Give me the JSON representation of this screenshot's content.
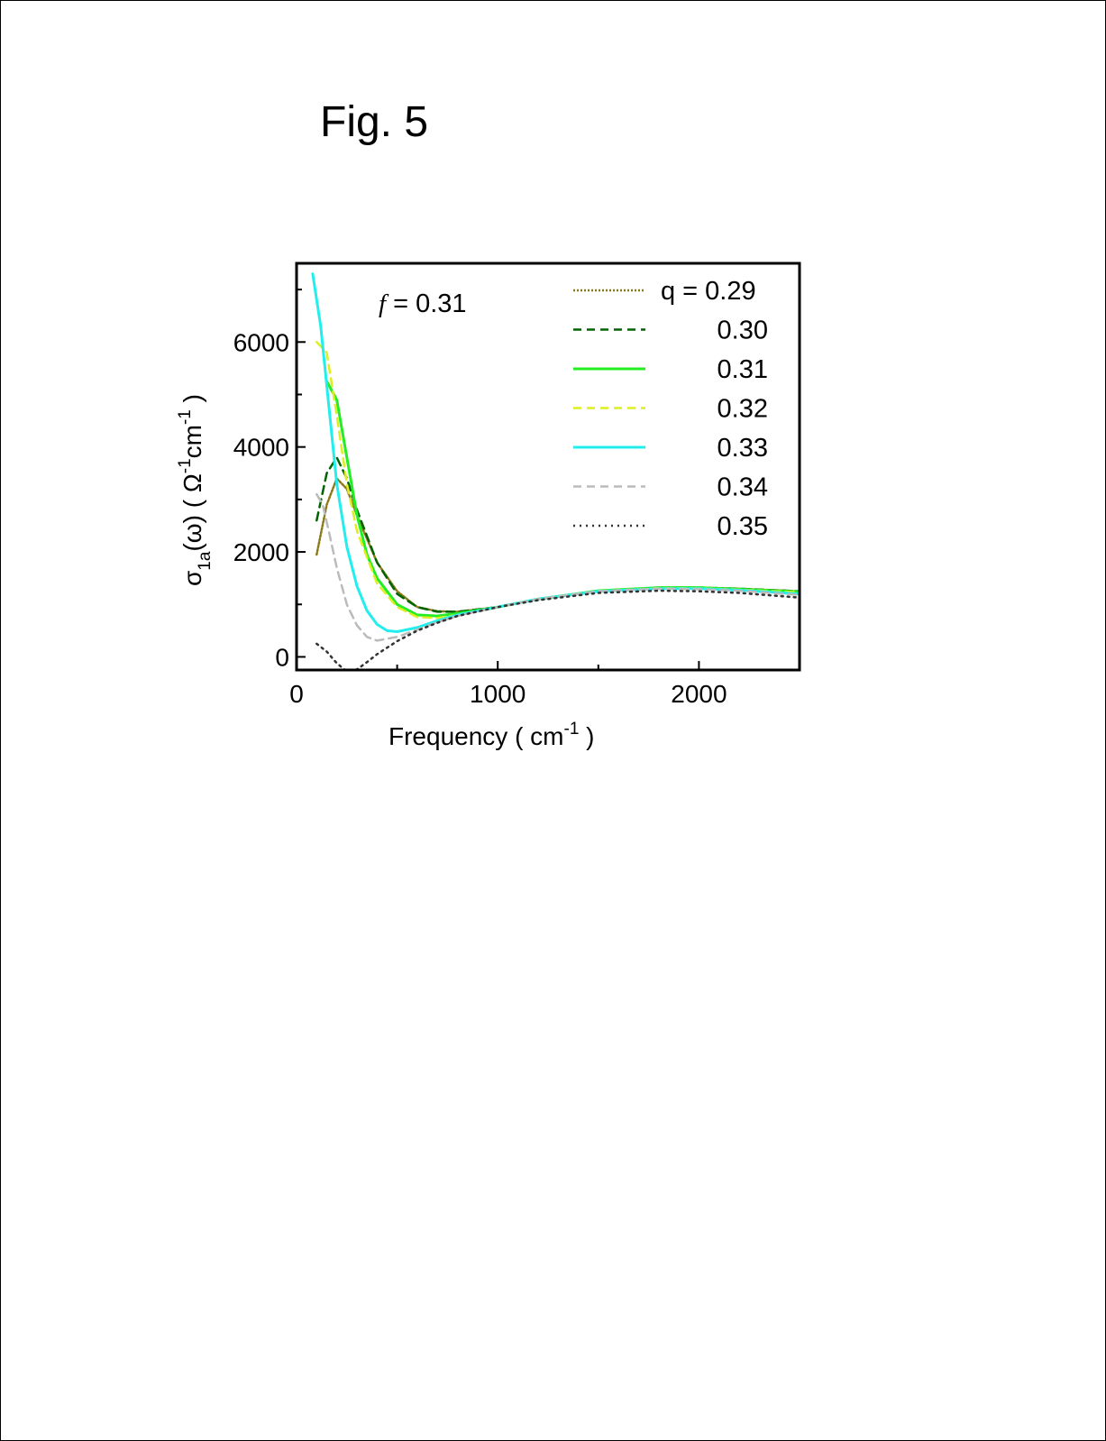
{
  "figure_label": "Fig. 5",
  "chart_data": {
    "type": "line",
    "title": "",
    "annotation": {
      "symbol": "f",
      "text": " = 0.31"
    },
    "xlabel": "Frequency ( cm",
    "xlabel_sup": "-1",
    "xlabel_end": " )",
    "ylabel_parts": [
      "σ",
      "1a",
      "(ω)  ( Ω",
      "-1",
      "cm",
      "-1",
      " )"
    ],
    "xlim": [
      0,
      2500
    ],
    "ylim": [
      -250,
      7500
    ],
    "xticks": [
      0,
      1000,
      2000
    ],
    "xtick_labels": [
      "0",
      "1000",
      "2000"
    ],
    "xminor": [
      500,
      1500
    ],
    "yticks": [
      0,
      2000,
      4000,
      6000
    ],
    "ytick_labels": [
      "0",
      "2000",
      "4000",
      "6000"
    ],
    "yminor": [
      1000,
      3000,
      5000,
      7000
    ],
    "legend_position": "top-right",
    "series": [
      {
        "name": "q = 0.29",
        "color": "#8b7a1a",
        "style": "dotted-marker",
        "x": [
          100,
          150,
          200,
          250,
          300,
          400,
          500,
          600,
          700,
          800,
          1000,
          1200,
          1500,
          1800,
          2000,
          2200,
          2500
        ],
        "y": [
          1950,
          2900,
          3400,
          3200,
          2700,
          1800,
          1250,
          950,
          870,
          860,
          950,
          1100,
          1250,
          1320,
          1320,
          1300,
          1250
        ]
      },
      {
        "name": "0.30",
        "color": "#006400",
        "style": "dashed",
        "x": [
          100,
          150,
          200,
          250,
          300,
          400,
          500,
          600,
          700,
          800,
          1000,
          1200,
          1500,
          1800,
          2000,
          2200,
          2500
        ],
        "y": [
          2600,
          3500,
          3800,
          3400,
          2800,
          1800,
          1200,
          950,
          860,
          860,
          950,
          1100,
          1250,
          1320,
          1320,
          1300,
          1250
        ]
      },
      {
        "name": "0.31",
        "color": "#22ee22",
        "style": "solid",
        "x": [
          150,
          200,
          250,
          300,
          350,
          400,
          500,
          600,
          700,
          800,
          1000,
          1200,
          1500,
          1800,
          2000,
          2200,
          2500
        ],
        "y": [
          5250,
          4900,
          3800,
          2700,
          1950,
          1500,
          1000,
          800,
          780,
          830,
          950,
          1100,
          1260,
          1320,
          1320,
          1290,
          1240
        ]
      },
      {
        "name": "0.32",
        "color": "#ddee22",
        "style": "dashed",
        "x": [
          100,
          150,
          200,
          250,
          300,
          400,
          500,
          600,
          700,
          800,
          1000,
          1200,
          1500,
          1800,
          2000,
          2200,
          2500
        ],
        "y": [
          6000,
          5800,
          4600,
          3300,
          2400,
          1400,
          950,
          760,
          740,
          800,
          940,
          1100,
          1250,
          1310,
          1310,
          1280,
          1230
        ]
      },
      {
        "name": "0.33",
        "color": "#22eeee",
        "style": "solid",
        "x": [
          80,
          120,
          160,
          200,
          250,
          300,
          350,
          400,
          450,
          500,
          600,
          700,
          800,
          1000,
          1200,
          1500,
          1800,
          2000,
          2200,
          2500
        ],
        "y": [
          7300,
          6300,
          4800,
          3300,
          2100,
          1350,
          880,
          620,
          500,
          480,
          560,
          690,
          800,
          950,
          1100,
          1250,
          1300,
          1300,
          1270,
          1200
        ]
      },
      {
        "name": "0.34",
        "color": "#bbbbbb",
        "style": "dashed",
        "x": [
          100,
          130,
          160,
          200,
          250,
          300,
          350,
          400,
          500,
          600,
          700,
          800,
          1000,
          1200,
          1500,
          1800,
          2000,
          2200,
          2500
        ],
        "y": [
          3100,
          2900,
          2400,
          1700,
          1000,
          600,
          380,
          310,
          380,
          520,
          660,
          780,
          950,
          1100,
          1250,
          1300,
          1290,
          1260,
          1180
        ]
      },
      {
        "name": "0.35",
        "color": "#333333",
        "style": "dotted",
        "x": [
          100,
          150,
          200,
          250,
          300,
          350,
          400,
          500,
          600,
          700,
          800,
          1000,
          1200,
          1500,
          1800,
          2000,
          2200,
          2500
        ],
        "y": [
          250,
          100,
          -120,
          -280,
          -240,
          -100,
          50,
          300,
          500,
          650,
          780,
          950,
          1080,
          1220,
          1260,
          1250,
          1220,
          1130
        ]
      }
    ]
  }
}
